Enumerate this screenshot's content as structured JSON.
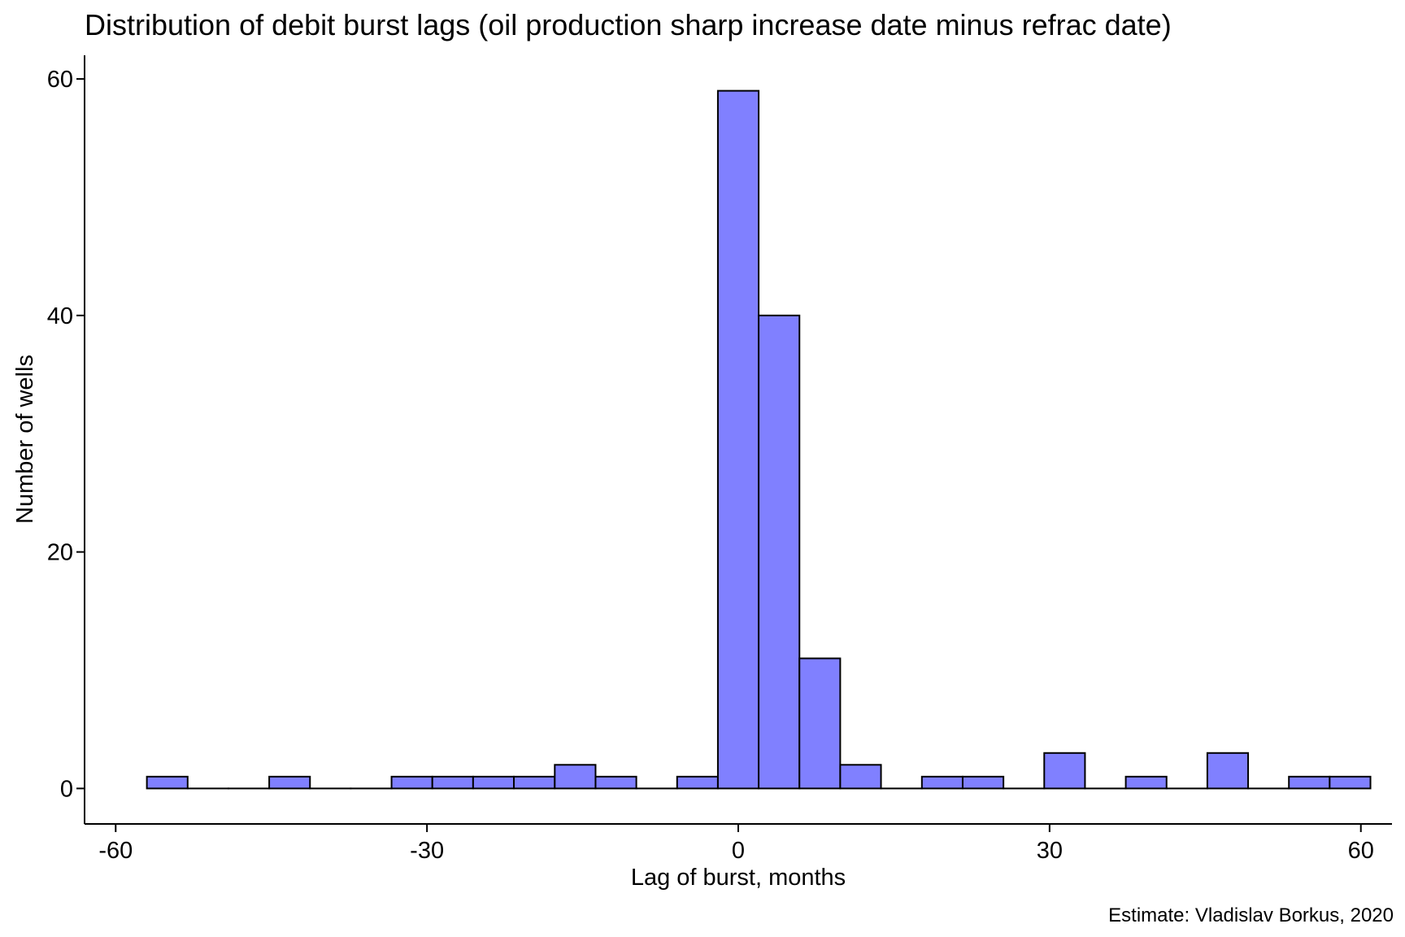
{
  "chart_data": {
    "type": "bar",
    "title": "Distribution of debit burst lags (oil production sharp increase date minus refrac date)",
    "xlabel": "Lag of burst, months",
    "ylabel": "Number of wells",
    "caption": "Estimate: Vladislav Borkus, 2020",
    "xlim": [
      -63,
      63
    ],
    "ylim": [
      -3,
      62
    ],
    "x_ticks": [
      -60,
      -30,
      0,
      30,
      60
    ],
    "x_tick_labels": [
      "-60",
      "-30",
      "0",
      "30",
      "60"
    ],
    "y_ticks": [
      0,
      20,
      40,
      60
    ],
    "y_tick_labels": [
      "0",
      "20",
      "40",
      "60"
    ],
    "bin_width": 3.93,
    "bin_centers": [
      -55.03,
      -51.1,
      -47.17,
      -43.24,
      -39.31,
      -35.38,
      -31.45,
      -27.52,
      -23.59,
      -19.66,
      -15.72,
      -11.79,
      -7.86,
      -3.93,
      0,
      3.93,
      7.86,
      11.79,
      15.72,
      19.66,
      23.59,
      27.52,
      31.45,
      35.38,
      39.31,
      43.24,
      47.17,
      51.1,
      55.03,
      58.96
    ],
    "counts": [
      1,
      0,
      0,
      1,
      0,
      0,
      1,
      1,
      1,
      1,
      2,
      1,
      0,
      1,
      59,
      40,
      11,
      2,
      0,
      1,
      1,
      0,
      3,
      0,
      1,
      0,
      3,
      0,
      1,
      1
    ],
    "bar_fill": "#8080ff",
    "bar_stroke": "#000000",
    "grid": false,
    "legend": "none"
  }
}
